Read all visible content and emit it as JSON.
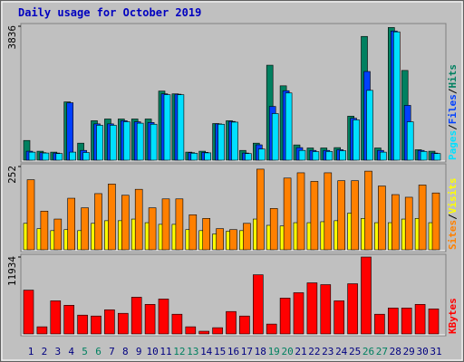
{
  "chart_data": [
    {
      "type": "bar",
      "title": "Daily usage for October 2019",
      "legend_separator": "/",
      "ylim": [
        0,
        3836
      ],
      "yticks": [
        3836
      ],
      "series": [
        {
          "name": "Pages",
          "color": "#00e0ff",
          "values": [
            230,
            205,
            190,
            231,
            220,
            1000,
            1000,
            1100,
            1060,
            1030,
            1875,
            1875,
            200,
            210,
            1030,
            1090,
            190,
            320,
            1335,
            1925,
            280,
            245,
            250,
            270,
            1155,
            2000,
            230,
            3675,
            1100,
            250,
            190
          ]
        },
        {
          "name": "Files",
          "color": "#0040ff",
          "values": [
            257,
            215,
            205,
            1645,
            280,
            1040,
            1040,
            1130,
            1100,
            1080,
            1900,
            1890,
            215,
            225,
            1040,
            1110,
            205,
            440,
            1540,
            1990,
            360,
            280,
            280,
            300,
            1200,
            2540,
            280,
            3700,
            1570,
            280,
            205
          ]
        },
        {
          "name": "Hits",
          "color": "#008060",
          "values": [
            565,
            257,
            231,
            1670,
            488,
            1130,
            1180,
            1180,
            1180,
            1180,
            1980,
            1900,
            231,
            257,
            1050,
            1130,
            280,
            488,
            2720,
            2130,
            437,
            350,
            350,
            360,
            1260,
            3545,
            350,
            3800,
            2570,
            300,
            257
          ]
        }
      ]
    },
    {
      "type": "bar",
      "ylim": [
        0,
        252
      ],
      "yticks": [
        252
      ],
      "series": [
        {
          "name": "Sites",
          "color": "#ff8000",
          "values": [
            212,
            117,
            93,
            156,
            127,
            170,
            199,
            165,
            183,
            127,
            154,
            154,
            106,
            95,
            64,
            61,
            80,
            244,
            125,
            217,
            233,
            207,
            233,
            209,
            209,
            238,
            193,
            167,
            159,
            196,
            172
          ]
        },
        {
          "name": "Visits",
          "color": "#ffff00",
          "values": [
            80,
            64,
            58,
            61,
            58,
            80,
            88,
            88,
            93,
            82,
            77,
            77,
            61,
            58,
            48,
            56,
            58,
            93,
            74,
            72,
            82,
            82,
            85,
            88,
            111,
            95,
            82,
            82,
            93,
            95,
            82
          ]
        }
      ]
    },
    {
      "type": "bar",
      "ylim": [
        0,
        11934
      ],
      "yticks": [
        11934
      ],
      "categories": [
        1,
        2,
        3,
        4,
        5,
        6,
        7,
        8,
        9,
        10,
        11,
        12,
        13,
        14,
        15,
        16,
        17,
        18,
        19,
        20,
        21,
        22,
        23,
        24,
        25,
        26,
        27,
        28,
        29,
        30,
        31
      ],
      "category_colors": [
        "#000080",
        "#000080",
        "#000080",
        "#000080",
        "#008060",
        "#008060",
        "#000080",
        "#000080",
        "#000080",
        "#000080",
        "#000080",
        "#008060",
        "#008060",
        "#000080",
        "#000080",
        "#000080",
        "#000080",
        "#000080",
        "#008060",
        "#008060",
        "#000080",
        "#000080",
        "#000080",
        "#000080",
        "#000080",
        "#008060",
        "#008060",
        "#000080",
        "#000080",
        "#000080",
        "#000080"
      ],
      "series": [
        {
          "name": "KBytes",
          "color": "#ff0000",
          "values": [
            6800,
            1110,
            5140,
            4450,
            2920,
            2780,
            3750,
            3200,
            5700,
            4590,
            5420,
            3060,
            1110,
            420,
            970,
            3480,
            2780,
            9180,
            1530,
            5560,
            6400,
            7930,
            7650,
            5140,
            7790,
            11934,
            3060,
            4030,
            4030,
            4590,
            3890
          ]
        }
      ]
    }
  ]
}
